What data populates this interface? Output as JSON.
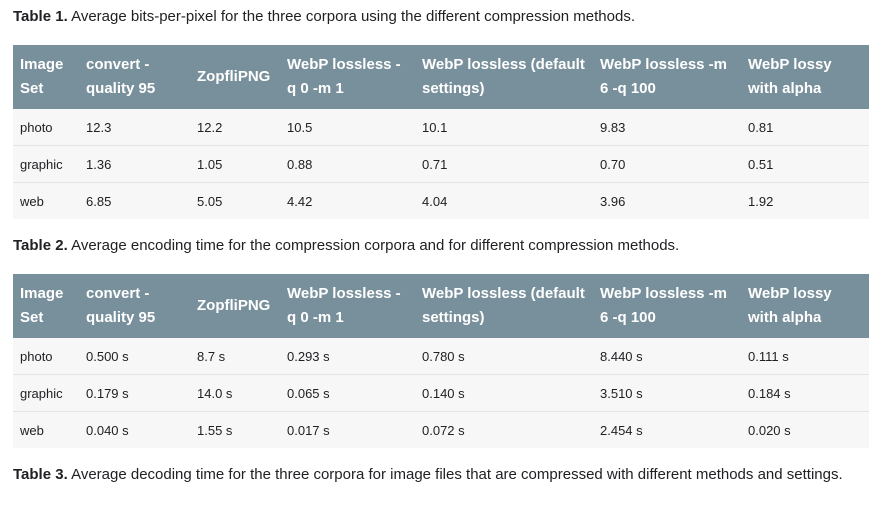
{
  "headers": [
    "Image Set",
    "convert - quality 95",
    "ZopfliPNG",
    "WebP lossless - q 0 -m 1",
    "WebP lossless (default settings)",
    "WebP lossless -m 6 -q 100",
    "WebP lossy with alpha"
  ],
  "table1": {
    "label": "Table 1.",
    "caption": " Average bits-per-pixel for the three corpora using the different compression methods.",
    "rows": [
      [
        "photo",
        "12.3",
        "12.2",
        "10.5",
        "10.1",
        "9.83",
        "0.81"
      ],
      [
        "graphic",
        "1.36",
        "1.05",
        "0.88",
        "0.71",
        "0.70",
        "0.51"
      ],
      [
        "web",
        "6.85",
        "5.05",
        "4.42",
        "4.04",
        "3.96",
        "1.92"
      ]
    ]
  },
  "table2": {
    "label": "Table 2.",
    "caption": " Average encoding time for the compression corpora and for different compression methods.",
    "rows": [
      [
        "photo",
        "0.500 s",
        "8.7 s",
        "0.293 s",
        "0.780 s",
        "8.440 s",
        "0.111 s"
      ],
      [
        "graphic",
        "0.179 s",
        "14.0 s",
        "0.065 s",
        "0.140 s",
        "3.510 s",
        "0.184 s"
      ],
      [
        "web",
        "0.040 s",
        "1.55 s",
        "0.017 s",
        "0.072 s",
        "2.454 s",
        "0.020 s"
      ]
    ]
  },
  "table3": {
    "label": "Table 3.",
    "caption": " Average decoding time for the three corpora for image files that are compressed with different methods and settings."
  }
}
